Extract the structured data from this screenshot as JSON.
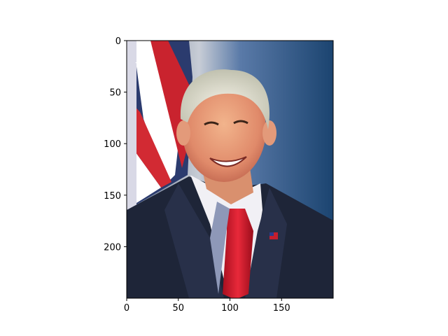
{
  "chart_data": {
    "type": "image",
    "title": "",
    "xlabel": "",
    "ylabel": "",
    "image_shape": {
      "width": 200,
      "height": 250
    },
    "xlim": [
      0,
      200
    ],
    "ylim": [
      250,
      0
    ],
    "y_inverted": true,
    "x_ticks": [
      0,
      50,
      100,
      150
    ],
    "y_ticks": [
      0,
      50,
      100,
      150,
      200
    ],
    "x_tick_labels": [
      "0",
      "50",
      "100",
      "150"
    ],
    "y_tick_labels": [
      "0",
      "50",
      "100",
      "150",
      "200"
    ],
    "grid": false,
    "legend": "none",
    "image_content": {
      "subject": "portrait of a smiling man with white hair in a dark suit, white shirt and red tie",
      "background": "American flag on the left, dark blue backdrop"
    }
  }
}
